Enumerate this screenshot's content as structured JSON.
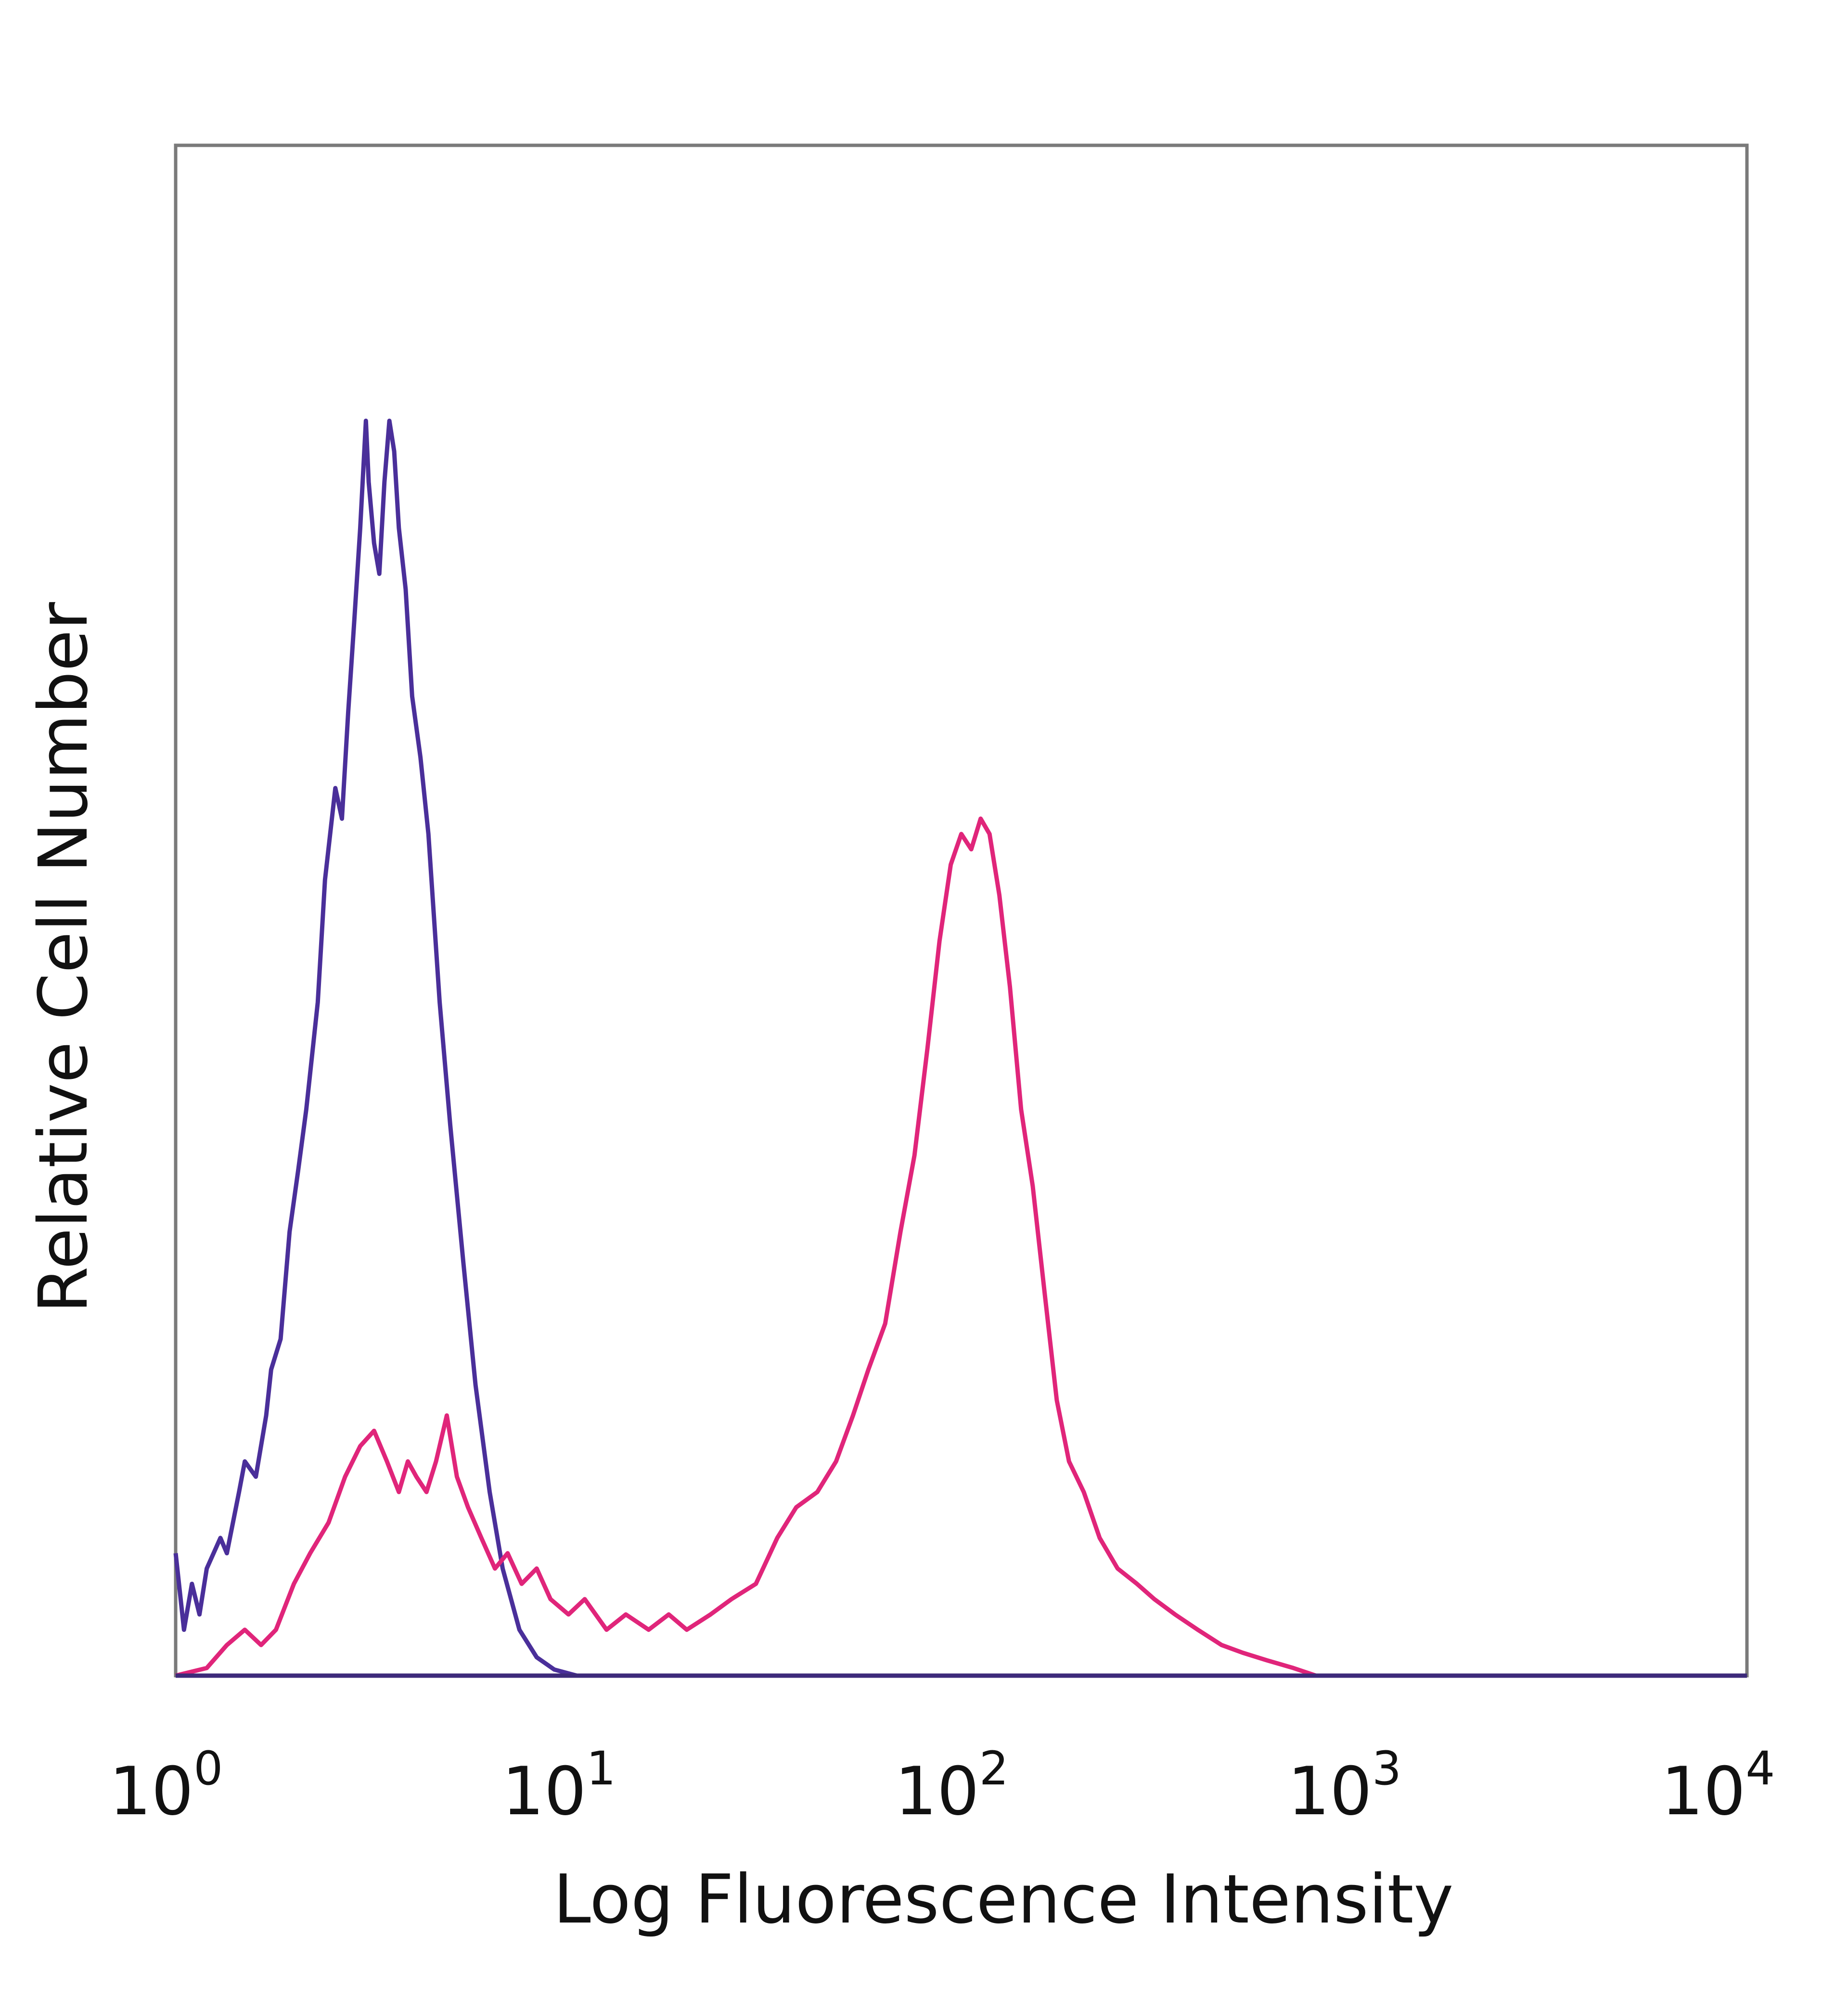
{
  "chart_data": {
    "type": "line",
    "xlabel": "Log Fluorescence Intensity",
    "ylabel": "Relative Cell Number",
    "x_scale": "log",
    "xlim": [
      1,
      10000
    ],
    "ylim": [
      0,
      100
    ],
    "x_ticks": [
      {
        "base": "10",
        "exp": "0",
        "value": 1
      },
      {
        "base": "10",
        "exp": "1",
        "value": 10
      },
      {
        "base": "10",
        "exp": "2",
        "value": 100
      },
      {
        "base": "10",
        "exp": "3",
        "value": 1000
      },
      {
        "base": "10",
        "exp": "4",
        "value": 10000
      }
    ],
    "grid": false,
    "legend": "none",
    "series": [
      {
        "color": "#4a2f9a",
        "points": [
          [
            1.0,
            8
          ],
          [
            1.05,
            3
          ],
          [
            1.1,
            6
          ],
          [
            1.15,
            4
          ],
          [
            1.2,
            7
          ],
          [
            1.3,
            9
          ],
          [
            1.35,
            8
          ],
          [
            1.45,
            12
          ],
          [
            1.5,
            14
          ],
          [
            1.6,
            13
          ],
          [
            1.7,
            17
          ],
          [
            1.75,
            20
          ],
          [
            1.85,
            22
          ],
          [
            1.95,
            29
          ],
          [
            2.05,
            33
          ],
          [
            2.15,
            37
          ],
          [
            2.3,
            44
          ],
          [
            2.4,
            52
          ],
          [
            2.55,
            58
          ],
          [
            2.65,
            56
          ],
          [
            2.75,
            63
          ],
          [
            2.85,
            69
          ],
          [
            2.95,
            75
          ],
          [
            3.05,
            82
          ],
          [
            3.1,
            78
          ],
          [
            3.2,
            74
          ],
          [
            3.3,
            72
          ],
          [
            3.4,
            78
          ],
          [
            3.5,
            82
          ],
          [
            3.6,
            80
          ],
          [
            3.7,
            75
          ],
          [
            3.85,
            71
          ],
          [
            4.0,
            64
          ],
          [
            4.2,
            60
          ],
          [
            4.4,
            55
          ],
          [
            4.7,
            44
          ],
          [
            5.0,
            36
          ],
          [
            5.4,
            27
          ],
          [
            5.8,
            19
          ],
          [
            6.3,
            12
          ],
          [
            6.8,
            7
          ],
          [
            7.5,
            3
          ],
          [
            8.3,
            1.2
          ],
          [
            9.2,
            0.4
          ],
          [
            10.5,
            0
          ],
          [
            20,
            0
          ],
          [
            100,
            0
          ],
          [
            1000,
            0
          ],
          [
            10000,
            0
          ]
        ]
      },
      {
        "color": "#e0257a",
        "points": [
          [
            1.0,
            0
          ],
          [
            1.2,
            0.5
          ],
          [
            1.35,
            2
          ],
          [
            1.5,
            3
          ],
          [
            1.65,
            2
          ],
          [
            1.8,
            3
          ],
          [
            2.0,
            6
          ],
          [
            2.2,
            8
          ],
          [
            2.45,
            10
          ],
          [
            2.7,
            13
          ],
          [
            2.95,
            15
          ],
          [
            3.2,
            16
          ],
          [
            3.45,
            14
          ],
          [
            3.7,
            12
          ],
          [
            3.9,
            14
          ],
          [
            4.1,
            13
          ],
          [
            4.35,
            12
          ],
          [
            4.6,
            14
          ],
          [
            4.9,
            17
          ],
          [
            5.2,
            13
          ],
          [
            5.55,
            11
          ],
          [
            6.0,
            9
          ],
          [
            6.5,
            7
          ],
          [
            7.0,
            8
          ],
          [
            7.6,
            6
          ],
          [
            8.3,
            7
          ],
          [
            9.0,
            5
          ],
          [
            10,
            4
          ],
          [
            11,
            5
          ],
          [
            12.5,
            3
          ],
          [
            14,
            4
          ],
          [
            16,
            3
          ],
          [
            18,
            4
          ],
          [
            20,
            3
          ],
          [
            23,
            4
          ],
          [
            26,
            5
          ],
          [
            30,
            6
          ],
          [
            34,
            9
          ],
          [
            38,
            11
          ],
          [
            43,
            12
          ],
          [
            48,
            14
          ],
          [
            53,
            17
          ],
          [
            58,
            20
          ],
          [
            64,
            23
          ],
          [
            70,
            29
          ],
          [
            76,
            34
          ],
          [
            82,
            41
          ],
          [
            88,
            48
          ],
          [
            94,
            53
          ],
          [
            100,
            55
          ],
          [
            106,
            54
          ],
          [
            112,
            56
          ],
          [
            118,
            55
          ],
          [
            125,
            51
          ],
          [
            133,
            45
          ],
          [
            142,
            37
          ],
          [
            152,
            32
          ],
          [
            163,
            25
          ],
          [
            175,
            18
          ],
          [
            188,
            14
          ],
          [
            205,
            12
          ],
          [
            225,
            9
          ],
          [
            250,
            7
          ],
          [
            280,
            6
          ],
          [
            310,
            5
          ],
          [
            350,
            4
          ],
          [
            400,
            3
          ],
          [
            460,
            2
          ],
          [
            520,
            1.5
          ],
          [
            600,
            1
          ],
          [
            700,
            0.5
          ],
          [
            800,
            0
          ],
          [
            1000,
            0
          ],
          [
            10000,
            0
          ]
        ]
      }
    ]
  }
}
